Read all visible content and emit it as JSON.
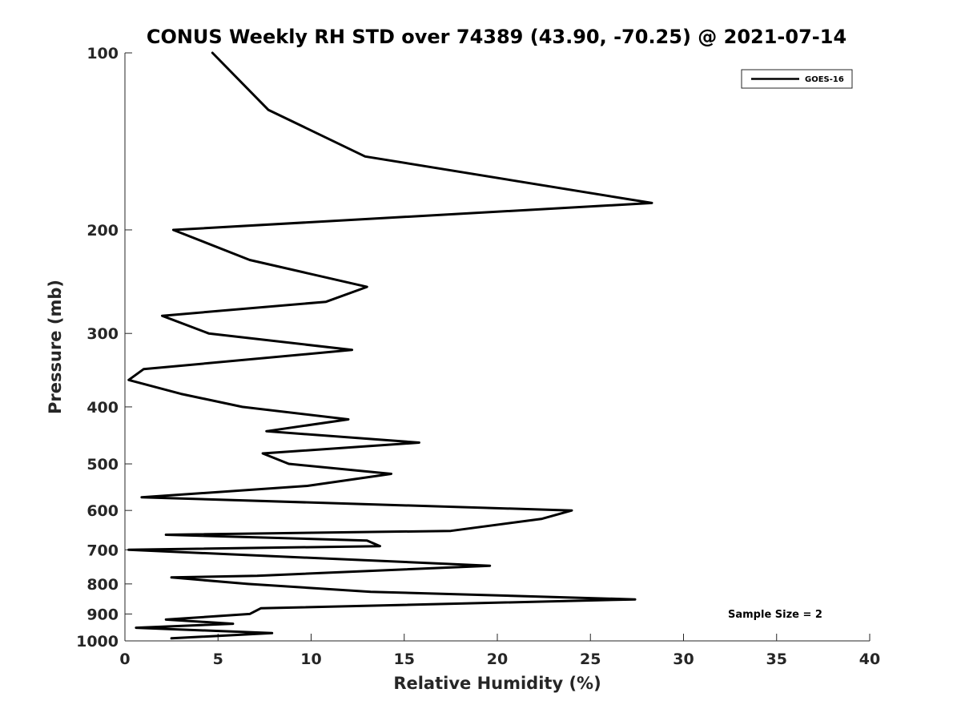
{
  "chart_data": {
    "type": "line",
    "title": "CONUS Weekly RH STD over 74389 (43.90, -70.25) @ 2021-07-14",
    "xlabel": "Relative Humidity (%)",
    "ylabel": "Pressure (mb)",
    "xlim": [
      0,
      40
    ],
    "ylim": [
      100,
      1000
    ],
    "y_scale": "log",
    "y_reversed": true,
    "grid": false,
    "legend_position": "top-right",
    "x_ticks": [
      0,
      5,
      10,
      15,
      20,
      25,
      30,
      35,
      40
    ],
    "y_ticks": [
      100,
      200,
      300,
      400,
      500,
      600,
      700,
      800,
      900,
      1000
    ],
    "x_tick_labels": [
      "0",
      "5",
      "10",
      "15",
      "20",
      "25",
      "30",
      "35",
      "40"
    ],
    "y_tick_labels": [
      "100",
      "200",
      "300",
      "400",
      "500",
      "600",
      "700",
      "800",
      "900",
      "1000"
    ],
    "annotation": "Sample Size = 2",
    "series": [
      {
        "name": "GOES-16",
        "color": "#000000",
        "points": [
          [
            4.7,
            100
          ],
          [
            7.7,
            125
          ],
          [
            12.9,
            150
          ],
          [
            28.3,
            180
          ],
          [
            2.6,
            200
          ],
          [
            6.7,
            225
          ],
          [
            13.0,
            250
          ],
          [
            10.8,
            265
          ],
          [
            2.0,
            280
          ],
          [
            4.5,
            300
          ],
          [
            12.2,
            320
          ],
          [
            1.0,
            345
          ],
          [
            0.2,
            360
          ],
          [
            3.0,
            380
          ],
          [
            6.3,
            400
          ],
          [
            12.0,
            420
          ],
          [
            7.6,
            440
          ],
          [
            15.8,
            460
          ],
          [
            7.4,
            480
          ],
          [
            8.8,
            500
          ],
          [
            14.3,
            520
          ],
          [
            9.8,
            545
          ],
          [
            0.9,
            570
          ],
          [
            24.0,
            600
          ],
          [
            22.4,
            620
          ],
          [
            17.5,
            650
          ],
          [
            2.2,
            660
          ],
          [
            13.0,
            675
          ],
          [
            13.7,
            690
          ],
          [
            0.2,
            700
          ],
          [
            19.6,
            745
          ],
          [
            7.1,
            775
          ],
          [
            2.5,
            780
          ],
          [
            6.6,
            800
          ],
          [
            13.2,
            825
          ],
          [
            27.4,
            850
          ],
          [
            7.3,
            880
          ],
          [
            6.7,
            900
          ],
          [
            2.2,
            920
          ],
          [
            5.8,
            935
          ],
          [
            0.6,
            950
          ],
          [
            7.9,
            970
          ],
          [
            2.5,
            990
          ]
        ]
      }
    ]
  }
}
